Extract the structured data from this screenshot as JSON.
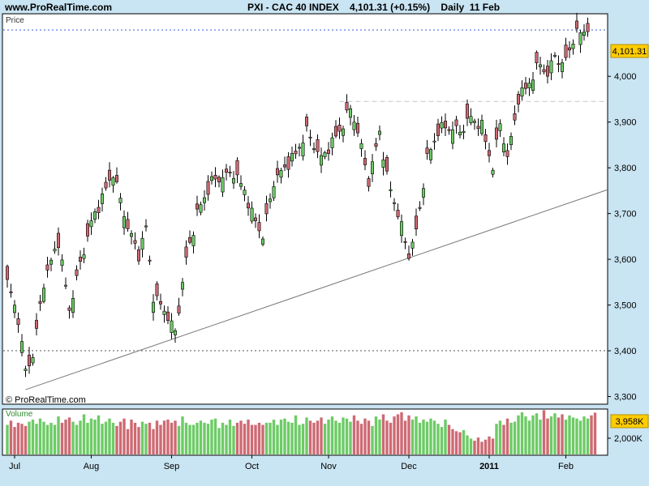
{
  "header": {
    "site": "www.ProRealTime.com",
    "title": "PXI - CAC 40 INDEX    4,101.31 (+0.15%)    Daily  11 Feb"
  },
  "price_panel": {
    "label": "Price",
    "watermark": "© ProRealTime.com",
    "last_price": "4,101.31",
    "y_ticks": [
      {
        "v": 3300,
        "label": "3,300"
      },
      {
        "v": 3400,
        "label": "3,400"
      },
      {
        "v": 3500,
        "label": "3,500"
      },
      {
        "v": 3600,
        "label": "3,600"
      },
      {
        "v": 3700,
        "label": "3,700"
      },
      {
        "v": 3800,
        "label": "3,800"
      },
      {
        "v": 3900,
        "label": "3,900"
      },
      {
        "v": 4000,
        "label": "4,000"
      }
    ]
  },
  "volume_panel": {
    "label": "Volume",
    "last_volume": "3,958K",
    "tick": "2,000K"
  },
  "x_labels": [
    {
      "i": 2,
      "label": "Jul",
      "bold": false
    },
    {
      "i": 23,
      "label": "Aug",
      "bold": false
    },
    {
      "i": 45,
      "label": "Sep",
      "bold": false
    },
    {
      "i": 67,
      "label": "Oct",
      "bold": false
    },
    {
      "i": 88,
      "label": "Nov",
      "bold": false
    },
    {
      "i": 110,
      "label": "Dec",
      "bold": false
    },
    {
      "i": 132,
      "label": "2011",
      "bold": true
    },
    {
      "i": 153,
      "label": "Feb",
      "bold": false
    }
  ],
  "colors": {
    "up": "#6DCB66",
    "down": "#CE6A73",
    "background": "#C9E4F2",
    "last_price_box": "#FFCC00",
    "last_price_line": "#3A5BDB"
  },
  "chart_data": {
    "type": "candlestick",
    "title": "PXI - CAC 40 INDEX",
    "ylim": [
      3285,
      4135
    ],
    "anchors": [
      {
        "i": 0,
        "close": 3550
      },
      {
        "i": 3,
        "close": 3470
      },
      {
        "i": 5,
        "close": 3355
      },
      {
        "i": 7,
        "close": 3390
      },
      {
        "i": 10,
        "close": 3550
      },
      {
        "i": 14,
        "close": 3640
      },
      {
        "i": 17,
        "close": 3490
      },
      {
        "i": 20,
        "close": 3590
      },
      {
        "i": 23,
        "close": 3680
      },
      {
        "i": 29,
        "close": 3790
      },
      {
        "i": 33,
        "close": 3670
      },
      {
        "i": 36,
        "close": 3610
      },
      {
        "i": 38,
        "close": 3670
      },
      {
        "i": 40,
        "close": 3520
      },
      {
        "i": 43,
        "close": 3490
      },
      {
        "i": 46,
        "close": 3440
      },
      {
        "i": 49,
        "close": 3600
      },
      {
        "i": 52,
        "close": 3700
      },
      {
        "i": 56,
        "close": 3770
      },
      {
        "i": 62,
        "close": 3790
      },
      {
        "i": 65,
        "close": 3750
      },
      {
        "i": 67,
        "close": 3700
      },
      {
        "i": 70,
        "close": 3650
      },
      {
        "i": 73,
        "close": 3770
      },
      {
        "i": 79,
        "close": 3830
      },
      {
        "i": 82,
        "close": 3880
      },
      {
        "i": 86,
        "close": 3820
      },
      {
        "i": 91,
        "close": 3880
      },
      {
        "i": 94,
        "close": 3930
      },
      {
        "i": 96,
        "close": 3880
      },
      {
        "i": 99,
        "close": 3770
      },
      {
        "i": 102,
        "close": 3880
      },
      {
        "i": 104,
        "close": 3780
      },
      {
        "i": 107,
        "close": 3700
      },
      {
        "i": 110,
        "close": 3610
      },
      {
        "i": 112,
        "close": 3660
      },
      {
        "i": 115,
        "close": 3820
      },
      {
        "i": 118,
        "close": 3880
      },
      {
        "i": 120,
        "close": 3890
      },
      {
        "i": 124,
        "close": 3880
      },
      {
        "i": 127,
        "close": 3910
      },
      {
        "i": 130,
        "close": 3890
      },
      {
        "i": 133,
        "close": 3800
      },
      {
        "i": 135,
        "close": 3900
      },
      {
        "i": 137,
        "close": 3820
      },
      {
        "i": 140,
        "close": 3950
      },
      {
        "i": 144,
        "close": 4000
      },
      {
        "i": 146,
        "close": 4030
      },
      {
        "i": 148,
        "close": 4000
      },
      {
        "i": 150,
        "close": 4050
      },
      {
        "i": 152,
        "close": 4020
      },
      {
        "i": 155,
        "close": 4080
      },
      {
        "i": 157,
        "close": 4100
      },
      {
        "i": 159,
        "close": 4101
      }
    ],
    "trendline": {
      "i1": 5,
      "v1": 3315,
      "i2": 160,
      "v2": 3740
    },
    "resistance": {
      "i1": 91,
      "i2": 160,
      "v": 3945
    },
    "last_price": 4101.31,
    "volume": {
      "ylim": [
        0,
        4300
      ],
      "values": [
        2800,
        3200,
        2600,
        3000,
        2900,
        2700,
        3100,
        3300,
        2900,
        3400,
        3100,
        2800,
        3000,
        2800,
        3600,
        3000,
        3300,
        3500,
        3100,
        2800,
        3200,
        3800,
        3000,
        3400,
        3300,
        3700,
        2900,
        3100,
        3400,
        3000,
        2700,
        3100,
        3400,
        2400,
        3300,
        3000,
        2600,
        3100,
        2900,
        3000,
        2400,
        3200,
        2800,
        3200,
        3300,
        3000,
        3200,
        2700,
        3600,
        3000,
        2800,
        2800,
        3000,
        3200,
        3000,
        2900,
        3300,
        3400,
        2500,
        3000,
        2800,
        3300,
        2700,
        3000,
        3200,
        2900,
        3300,
        2800,
        2800,
        3000,
        2800,
        3000,
        3000,
        3300,
        2800,
        3300,
        3400,
        3100,
        3000,
        3700,
        2800,
        2900,
        3500,
        3200,
        3000,
        3200,
        3500,
        2900,
        3300,
        3600,
        3200,
        3000,
        3500,
        3400,
        3100,
        3700,
        3200,
        2900,
        3400,
        3200,
        2700,
        3600,
        3300,
        3800,
        3200,
        3000,
        3600,
        3800,
        4000,
        3200,
        3700,
        3300,
        3600,
        3000,
        3300,
        3100,
        3400,
        3200,
        2900,
        2600,
        3300,
        2800,
        2400,
        2200,
        2100,
        2300,
        1800,
        1500,
        1300,
        1600,
        1200,
        1400,
        1700,
        1500,
        2900,
        3200,
        2800,
        3400,
        3000,
        3100,
        3700,
        4000,
        3600,
        3200,
        3700,
        3900,
        3300,
        4200,
        3400,
        3600,
        3900,
        3500,
        3800,
        3300,
        3700,
        3500,
        3400,
        3200,
        3600,
        3400,
        3700,
        3958
      ]
    }
  }
}
